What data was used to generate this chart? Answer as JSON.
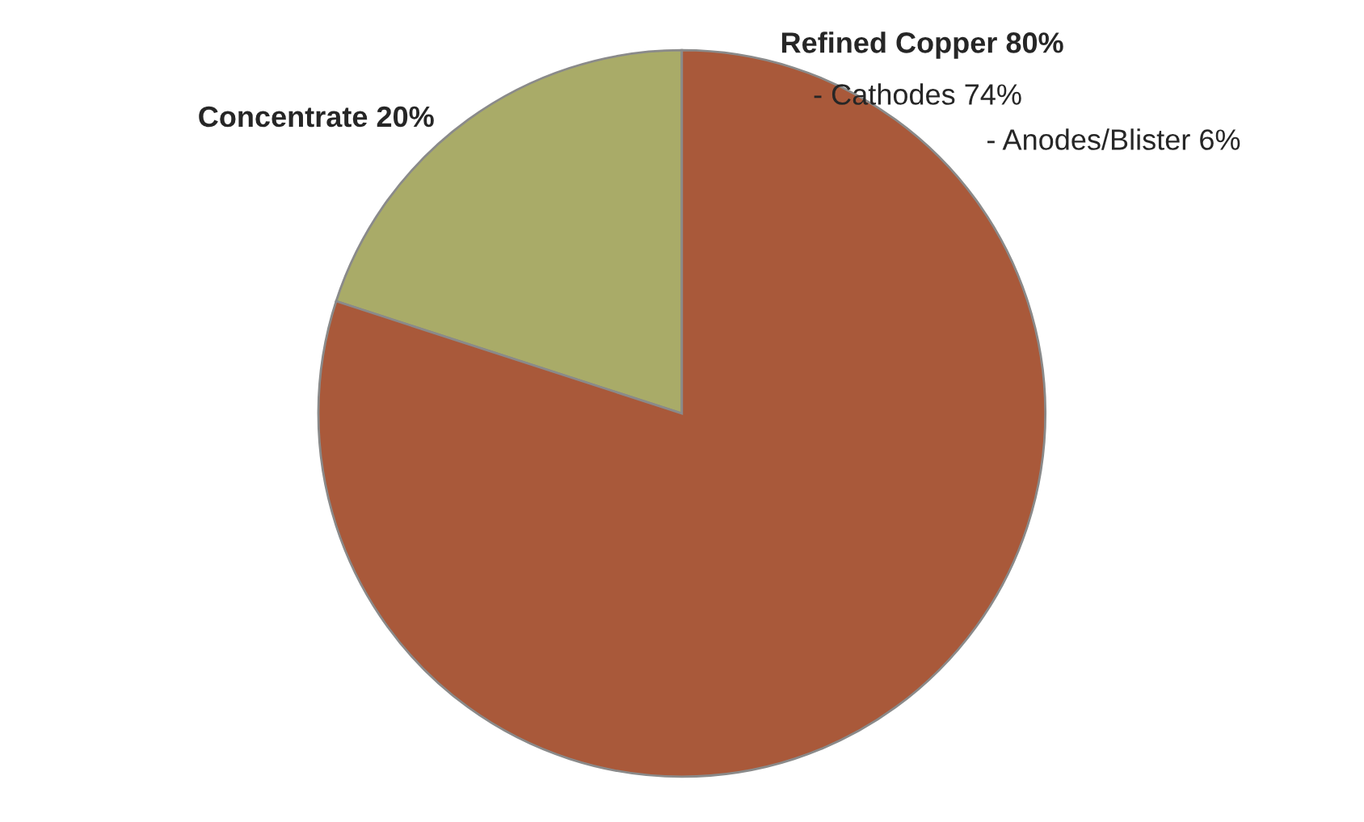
{
  "chart_data": {
    "type": "pie",
    "categories": [
      "Concentrate 20%",
      "Refined Copper 80%"
    ],
    "values": [
      20,
      80
    ],
    "colors": [
      "#a9ab68",
      "#a9593a"
    ],
    "annotations": [
      "- Cathodes 74%",
      "- Anodes/Blister 6%"
    ]
  }
}
